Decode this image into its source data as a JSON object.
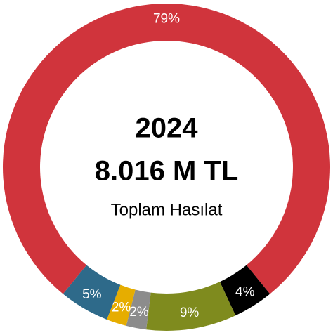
{
  "chart_data": {
    "type": "donut",
    "center_text": [
      "2024",
      "8.016 M TL",
      "Toplam Hasılat"
    ],
    "categories": [
      null,
      null,
      null,
      null,
      null,
      null
    ],
    "values": [
      79,
      4,
      9,
      2,
      2,
      5
    ],
    "value_labels": [
      "79%",
      "4%",
      "9%",
      "2%",
      "2%",
      "5%"
    ],
    "colors": [
      "#d0343c",
      "#000000",
      "#7f8b1e",
      "#8c8c8c",
      "#e6ad00",
      "#2e6a8a"
    ]
  }
}
